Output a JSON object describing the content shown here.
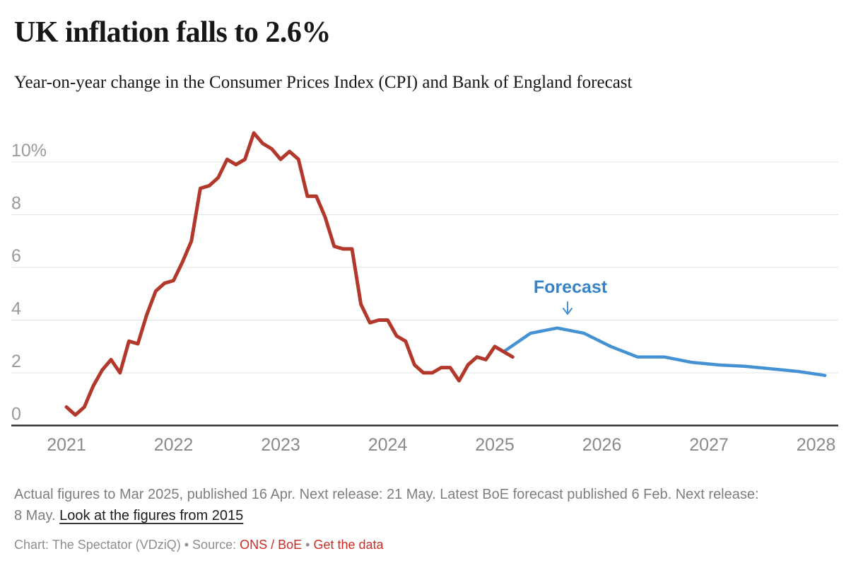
{
  "header": {
    "title": "UK inflation falls to 2.6%",
    "subtitle": "Year-on-year change in the Consumer Prices Index (CPI) and Bank of England forecast"
  },
  "chart_data": {
    "type": "line",
    "title": "UK inflation falls to 2.6%",
    "xlabel": "",
    "ylabel": "",
    "ylim": [
      0,
      11.5
    ],
    "grid": "horizontal",
    "legend_position": "none",
    "y_ticks": [
      {
        "label": "0",
        "value": 0
      },
      {
        "label": "2",
        "value": 2
      },
      {
        "label": "4",
        "value": 4
      },
      {
        "label": "6",
        "value": 6
      },
      {
        "label": "8",
        "value": 8
      },
      {
        "label": "10%",
        "value": 10
      }
    ],
    "x_ticks": [
      {
        "label": "2021",
        "month_index": 0
      },
      {
        "label": "2022",
        "month_index": 12
      },
      {
        "label": "2023",
        "month_index": 24
      },
      {
        "label": "2024",
        "month_index": 36
      },
      {
        "label": "2025",
        "month_index": 48
      },
      {
        "label": "2026",
        "month_index": 60
      },
      {
        "label": "2027",
        "month_index": 72
      },
      {
        "label": "2028",
        "month_index": 84
      }
    ],
    "series": [
      {
        "name": "Bank of England forecast",
        "color": "#4492d3",
        "stroke_width": 4.5,
        "start_month": "2025-02",
        "start_month_index": 49,
        "step_months": 3,
        "values": [
          2.8,
          3.5,
          3.7,
          3.5,
          3.0,
          2.6,
          2.6,
          2.4,
          2.3,
          2.25,
          2.15,
          2.05,
          1.9
        ]
      },
      {
        "name": "CPI actual",
        "color": "#b2382c",
        "stroke_width": 5,
        "start_month": "2021-01",
        "start_month_index": 0,
        "step_months": 1,
        "values": [
          0.7,
          0.4,
          0.7,
          1.5,
          2.1,
          2.5,
          2.0,
          3.2,
          3.1,
          4.2,
          5.1,
          5.4,
          5.5,
          6.2,
          7.0,
          9.0,
          9.1,
          9.4,
          10.1,
          9.9,
          10.1,
          11.1,
          10.7,
          10.5,
          10.1,
          10.4,
          10.1,
          8.7,
          8.7,
          7.9,
          6.8,
          6.7,
          6.7,
          4.6,
          3.9,
          4.0,
          4.0,
          3.4,
          3.2,
          2.3,
          2.0,
          2.0,
          2.2,
          2.2,
          1.7,
          2.3,
          2.6,
          2.5,
          3.0,
          2.8,
          2.6
        ]
      }
    ],
    "annotation": {
      "label": "Forecast",
      "color": "#3583c9"
    }
  },
  "footer": {
    "note_part1": "Actual figures to Mar 2025, published 16 Apr. Next release: 21 May. Latest BoE forecast published 6 Feb. Next release: 8 May. ",
    "note_link": "Look at the figures from 2015",
    "credit_prefix": "Chart: The Spectator (VDziQ) • Source: ",
    "source_link": "ONS / BoE",
    "separator": " • ",
    "data_link": "Get the data"
  },
  "colors": {
    "actual_line": "#b2382c",
    "forecast_line": "#4492d3",
    "forecast_label": "#3583c9",
    "link_red": "#cb2b24",
    "gridline": "#e4e4e4",
    "axis_line": "#2d2d2d"
  }
}
